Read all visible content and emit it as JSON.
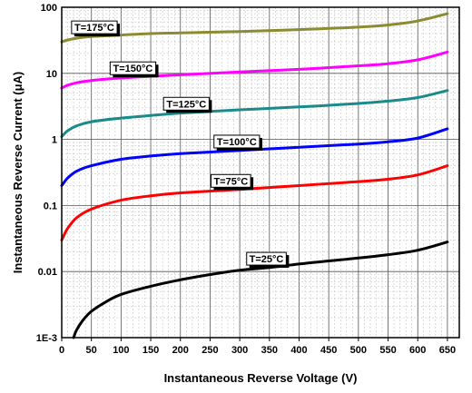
{
  "chart_data": {
    "type": "line",
    "title": "",
    "xlabel": "Instantaneous Reverse Voltage (V)",
    "ylabel": "Instantaneous Reverse Current (μA)",
    "xlim": [
      0,
      670
    ],
    "ylim": [
      0.001,
      100
    ],
    "yscale": "log",
    "grid": true,
    "legend": "none",
    "x_ticks": [
      "0",
      "50",
      "100",
      "150",
      "200",
      "250",
      "300",
      "350",
      "400",
      "450",
      "500",
      "550",
      "600",
      "650"
    ],
    "y_ticks": [
      "1E-3",
      "0.01",
      "0.1",
      "1",
      "10",
      "100"
    ],
    "series": [
      {
        "name": "T=175°C",
        "color": "#8b8b32",
        "x": [
          0,
          10,
          25,
          50,
          100,
          150,
          200,
          300,
          400,
          500,
          550,
          600,
          650
        ],
        "y": [
          30,
          32,
          34,
          36,
          38,
          40,
          41,
          43,
          46,
          50,
          54,
          62,
          80
        ]
      },
      {
        "name": "T=150°C",
        "color": "#ff00ff",
        "x": [
          0,
          10,
          25,
          50,
          100,
          150,
          200,
          300,
          400,
          500,
          550,
          600,
          650
        ],
        "y": [
          6,
          6.6,
          7.2,
          7.8,
          8.5,
          9,
          9.5,
          10.5,
          11.5,
          13,
          14,
          16,
          21
        ]
      },
      {
        "name": "T=125°C",
        "color": "#1a8a8a",
        "x": [
          0,
          10,
          25,
          50,
          100,
          150,
          200,
          300,
          400,
          500,
          550,
          600,
          650
        ],
        "y": [
          1.1,
          1.35,
          1.6,
          1.85,
          2.1,
          2.3,
          2.5,
          2.8,
          3.1,
          3.5,
          3.8,
          4.3,
          5.5
        ]
      },
      {
        "name": "T=100°C",
        "color": "#0000ff",
        "x": [
          0,
          10,
          25,
          50,
          100,
          150,
          200,
          300,
          400,
          500,
          550,
          600,
          650
        ],
        "y": [
          0.2,
          0.26,
          0.33,
          0.4,
          0.5,
          0.56,
          0.61,
          0.68,
          0.76,
          0.85,
          0.92,
          1.05,
          1.45
        ]
      },
      {
        "name": "T=75°C",
        "color": "#ff0000",
        "x": [
          0,
          10,
          25,
          50,
          100,
          150,
          200,
          300,
          400,
          500,
          550,
          600,
          650
        ],
        "y": [
          0.03,
          0.045,
          0.065,
          0.088,
          0.12,
          0.14,
          0.155,
          0.175,
          0.2,
          0.23,
          0.25,
          0.29,
          0.4
        ]
      },
      {
        "name": "T=25°C",
        "color": "#000000",
        "x": [
          20,
          25,
          35,
          50,
          75,
          100,
          150,
          200,
          250,
          300,
          350,
          400,
          450,
          500,
          550,
          600,
          650
        ],
        "y": [
          0.001,
          0.0013,
          0.0018,
          0.0025,
          0.0035,
          0.0045,
          0.006,
          0.0075,
          0.009,
          0.0105,
          0.0115,
          0.013,
          0.0145,
          0.016,
          0.018,
          0.021,
          0.028
        ]
      }
    ],
    "annotations": [
      {
        "text": "T=175°C",
        "series": 0,
        "x": 55
      },
      {
        "text": "T=150°C",
        "series": 1,
        "x": 120
      },
      {
        "text": "T=125°C",
        "series": 2,
        "x": 210
      },
      {
        "text": "T=100°C",
        "series": 3,
        "x": 295
      },
      {
        "text": "T=75°C",
        "series": 4,
        "x": 285
      },
      {
        "text": "T=25°C",
        "series": 5,
        "x": 345
      }
    ]
  }
}
